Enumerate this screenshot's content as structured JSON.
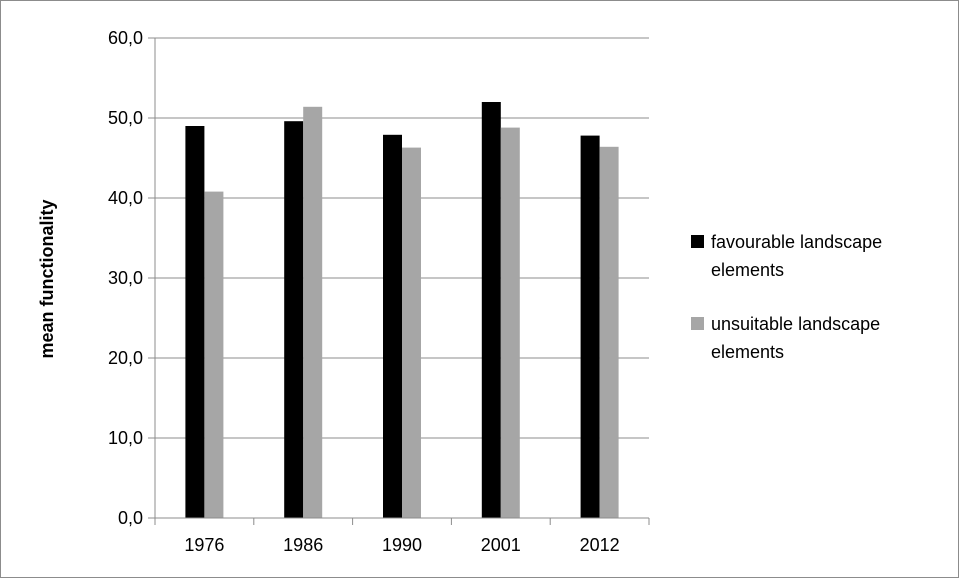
{
  "chart_data": {
    "type": "bar",
    "title": "",
    "xlabel": "",
    "ylabel": "mean functionality",
    "categories": [
      "1976",
      "1986",
      "1990",
      "2001",
      "2012"
    ],
    "series": [
      {
        "name": "favourable landscape elements",
        "legend_lines": [
          "favourable landscape",
          "elements"
        ],
        "color": "#000000",
        "values": [
          49.0,
          49.6,
          47.9,
          52.0,
          47.8
        ]
      },
      {
        "name": "unsuitable landscape elements",
        "legend_lines": [
          "unsuitable landscape",
          "elements"
        ],
        "color": "#a6a6a6",
        "values": [
          40.8,
          51.4,
          46.3,
          48.8,
          46.4
        ]
      }
    ],
    "ylim": [
      0,
      60
    ],
    "yticks": [
      0,
      10,
      20,
      30,
      40,
      50,
      60
    ],
    "ytick_labels": [
      "0,0",
      "10,0",
      "20,0",
      "30,0",
      "40,0",
      "50,0",
      "60,0"
    ],
    "grid": true,
    "legend_position": "right"
  }
}
